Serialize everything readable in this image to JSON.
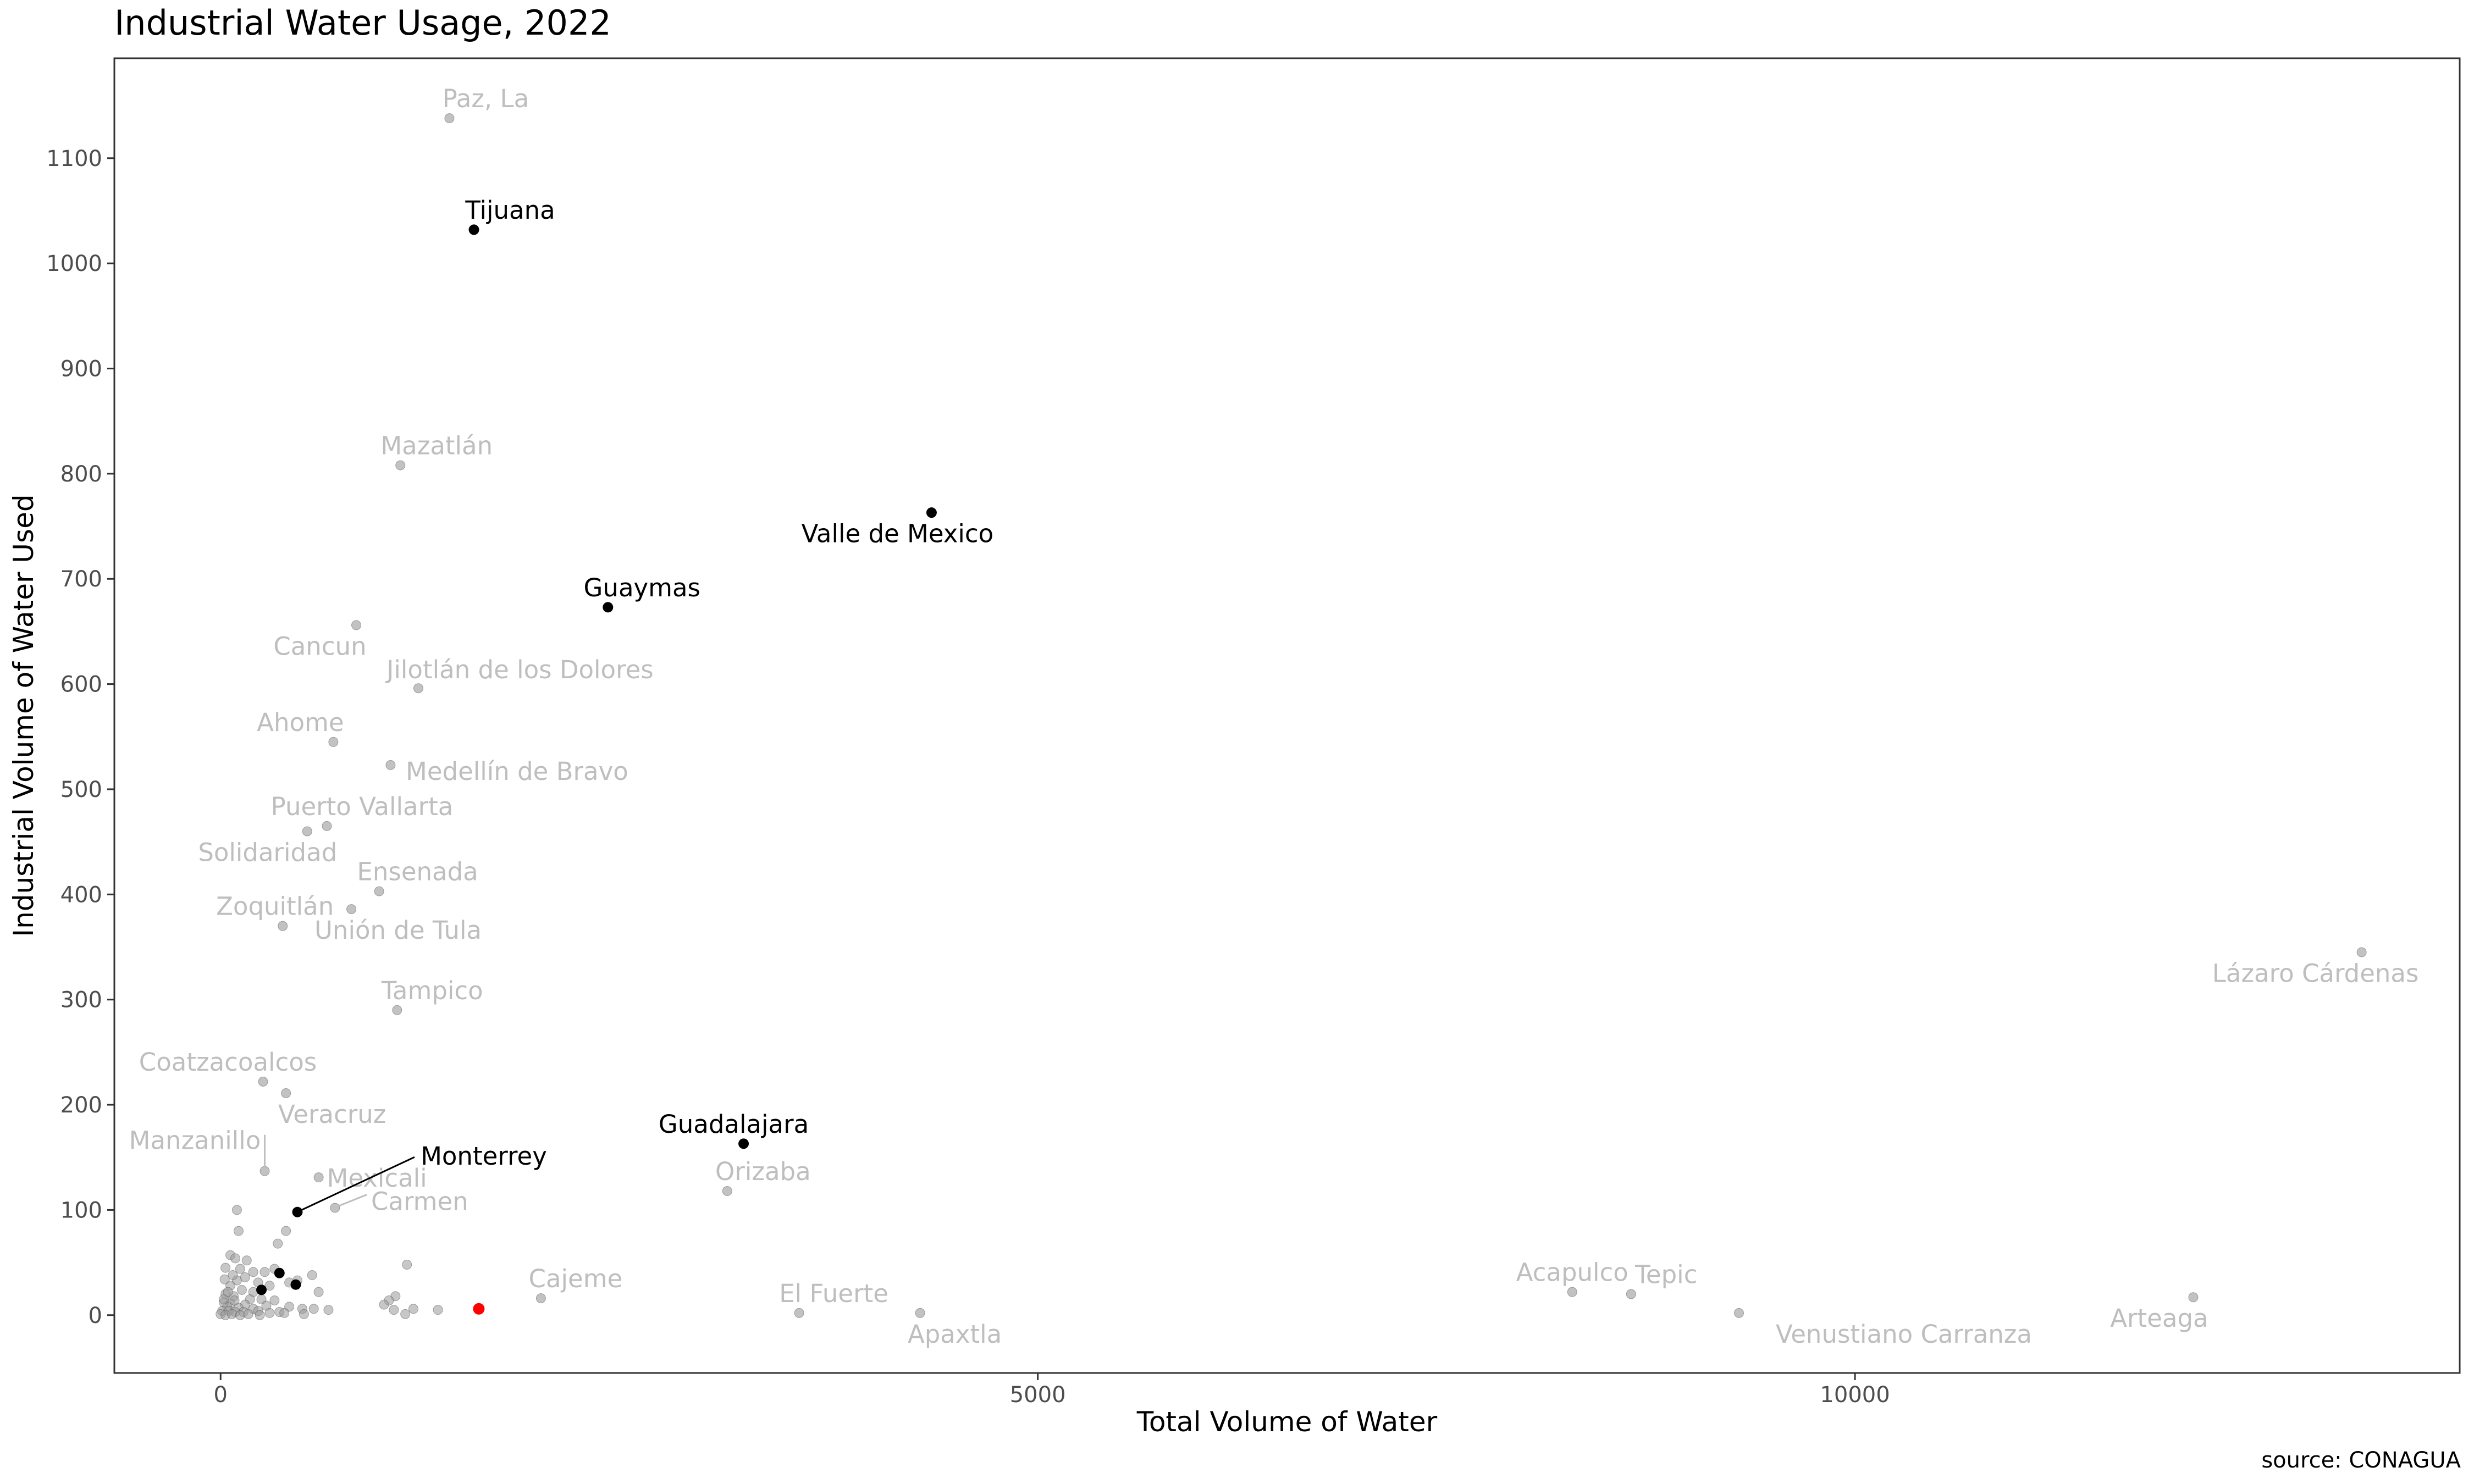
{
  "chart_data": {
    "type": "scatter",
    "title": "Industrial Water Usage, 2022",
    "xlabel": "Total Volume of Water",
    "ylabel": "Industrial Volume of Water Used",
    "caption": "source: CONAGUA",
    "xlim": [
      -650,
      13700
    ],
    "ylim": [
      -55,
      1195
    ],
    "x_ticks": [
      0,
      5000,
      10000
    ],
    "y_ticks": [
      0,
      100,
      200,
      300,
      400,
      500,
      600,
      700,
      800,
      900,
      1000,
      1100
    ],
    "grid": false,
    "legend": "none",
    "colors": {
      "highlight": "#000000",
      "other": "#999999",
      "other_label": "#bebebe",
      "selected": "#ff0000",
      "panel_border": "#333333"
    },
    "labeled_points": [
      {
        "label": "Paz, La",
        "x": 1400,
        "y": 1138,
        "highlight": false
      },
      {
        "label": "Tijuana",
        "x": 1550,
        "y": 1032,
        "highlight": true
      },
      {
        "label": "Mazatlán",
        "x": 1100,
        "y": 808,
        "highlight": false
      },
      {
        "label": "Valle de Mexico",
        "x": 4350,
        "y": 763,
        "highlight": true
      },
      {
        "label": "Guaymas",
        "x": 2370,
        "y": 673,
        "highlight": true
      },
      {
        "label": "Cancun",
        "x": 830,
        "y": 656,
        "highlight": false
      },
      {
        "label": "Jilotlán de los Dolores",
        "x": 1210,
        "y": 596,
        "highlight": false
      },
      {
        "label": "Ahome",
        "x": 690,
        "y": 545,
        "highlight": false
      },
      {
        "label": "Medellín de Bravo",
        "x": 1040,
        "y": 523,
        "highlight": false
      },
      {
        "label": "Puerto Vallarta",
        "x": 650,
        "y": 465,
        "highlight": false
      },
      {
        "label": "Solidaridad",
        "x": 530,
        "y": 460,
        "highlight": false
      },
      {
        "label": "Ensenada",
        "x": 970,
        "y": 403,
        "highlight": false
      },
      {
        "label": "Unión de Tula",
        "x": 800,
        "y": 386,
        "highlight": false
      },
      {
        "label": "Zoquitlán",
        "x": 380,
        "y": 370,
        "highlight": false
      },
      {
        "label": "Lázaro Cárdenas",
        "x": 13100,
        "y": 345,
        "highlight": false
      },
      {
        "label": "Tampico",
        "x": 1080,
        "y": 290,
        "highlight": false
      },
      {
        "label": "Coatzacoalcos",
        "x": 260,
        "y": 222,
        "highlight": false
      },
      {
        "label": "Veracruz",
        "x": 400,
        "y": 211,
        "highlight": false
      },
      {
        "label": "Guadalajara",
        "x": 3200,
        "y": 163,
        "highlight": true
      },
      {
        "label": "Manzanillo",
        "x": 270,
        "y": 137,
        "highlight": false
      },
      {
        "label": "Mexicali",
        "x": 600,
        "y": 131,
        "highlight": false
      },
      {
        "label": "Orizaba",
        "x": 3100,
        "y": 118,
        "highlight": false
      },
      {
        "label": "Carmen",
        "x": 700,
        "y": 102,
        "highlight": false
      },
      {
        "label": "Monterrey",
        "x": 470,
        "y": 98,
        "highlight": true
      },
      {
        "label": "Cajeme",
        "x": 1960,
        "y": 16,
        "highlight": false
      },
      {
        "label": "El Fuerte",
        "x": 3540,
        "y": 2,
        "highlight": false
      },
      {
        "label": "Apaxtla",
        "x": 4280,
        "y": 2,
        "highlight": false
      },
      {
        "label": "Acapulco",
        "x": 8270,
        "y": 22,
        "highlight": false
      },
      {
        "label": "Tepic",
        "x": 8630,
        "y": 20,
        "highlight": false
      },
      {
        "label": "Venustiano Carranza",
        "x": 9290,
        "y": 2,
        "highlight": false
      },
      {
        "label": "Arteaga",
        "x": 12070,
        "y": 17,
        "highlight": false
      }
    ],
    "unlabeled_points": [
      {
        "x": 100,
        "y": 100
      },
      {
        "x": 110,
        "y": 80
      },
      {
        "x": 400,
        "y": 80
      },
      {
        "x": 350,
        "y": 68
      },
      {
        "x": 60,
        "y": 57
      },
      {
        "x": 90,
        "y": 54
      },
      {
        "x": 1140,
        "y": 48
      },
      {
        "x": 30,
        "y": 45
      },
      {
        "x": 120,
        "y": 44
      },
      {
        "x": 200,
        "y": 41
      },
      {
        "x": 270,
        "y": 41
      },
      {
        "x": 330,
        "y": 44
      },
      {
        "x": 560,
        "y": 38
      },
      {
        "x": 150,
        "y": 36
      },
      {
        "x": 100,
        "y": 33
      },
      {
        "x": 230,
        "y": 31
      },
      {
        "x": 470,
        "y": 33
      },
      {
        "x": 420,
        "y": 31
      },
      {
        "x": 300,
        "y": 28
      },
      {
        "x": 60,
        "y": 28
      },
      {
        "x": 130,
        "y": 24
      },
      {
        "x": 200,
        "y": 22
      },
      {
        "x": 600,
        "y": 22
      },
      {
        "x": 30,
        "y": 20
      },
      {
        "x": 80,
        "y": 18
      },
      {
        "x": 1070,
        "y": 18
      },
      {
        "x": 180,
        "y": 15
      },
      {
        "x": 250,
        "y": 15
      },
      {
        "x": 330,
        "y": 14
      },
      {
        "x": 1030,
        "y": 14
      },
      {
        "x": 20,
        "y": 12
      },
      {
        "x": 60,
        "y": 11
      },
      {
        "x": 150,
        "y": 10
      },
      {
        "x": 40,
        "y": 8
      },
      {
        "x": 280,
        "y": 9
      },
      {
        "x": 420,
        "y": 8
      },
      {
        "x": 1000,
        "y": 10
      },
      {
        "x": 110,
        "y": 7
      },
      {
        "x": 200,
        "y": 6
      },
      {
        "x": 500,
        "y": 6
      },
      {
        "x": 570,
        "y": 6
      },
      {
        "x": 660,
        "y": 5
      },
      {
        "x": 1060,
        "y": 5
      },
      {
        "x": 1180,
        "y": 6
      },
      {
        "x": 1330,
        "y": 5
      },
      {
        "x": 10,
        "y": 4
      },
      {
        "x": 50,
        "y": 4
      },
      {
        "x": 90,
        "y": 3
      },
      {
        "x": 140,
        "y": 3
      },
      {
        "x": 230,
        "y": 4
      },
      {
        "x": 300,
        "y": 2
      },
      {
        "x": 360,
        "y": 3
      },
      {
        "x": 390,
        "y": 2
      },
      {
        "x": 510,
        "y": 1
      },
      {
        "x": 1130,
        "y": 1
      },
      {
        "x": 0,
        "y": 1
      },
      {
        "x": 30,
        "y": 0
      },
      {
        "x": 70,
        "y": 1
      },
      {
        "x": 120,
        "y": 0
      },
      {
        "x": 170,
        "y": 1
      },
      {
        "x": 240,
        "y": 0
      },
      {
        "x": 20,
        "y": 15
      },
      {
        "x": 45,
        "y": 22
      },
      {
        "x": 75,
        "y": 38
      },
      {
        "x": 160,
        "y": 52
      },
      {
        "x": 85,
        "y": 14
      },
      {
        "x": 25,
        "y": 34
      }
    ],
    "highlight_unlabeled_points": [
      {
        "x": 250,
        "y": 24
      },
      {
        "x": 360,
        "y": 40
      },
      {
        "x": 460,
        "y": 29
      }
    ],
    "selected_point": {
      "x": 1580,
      "y": 6
    }
  }
}
